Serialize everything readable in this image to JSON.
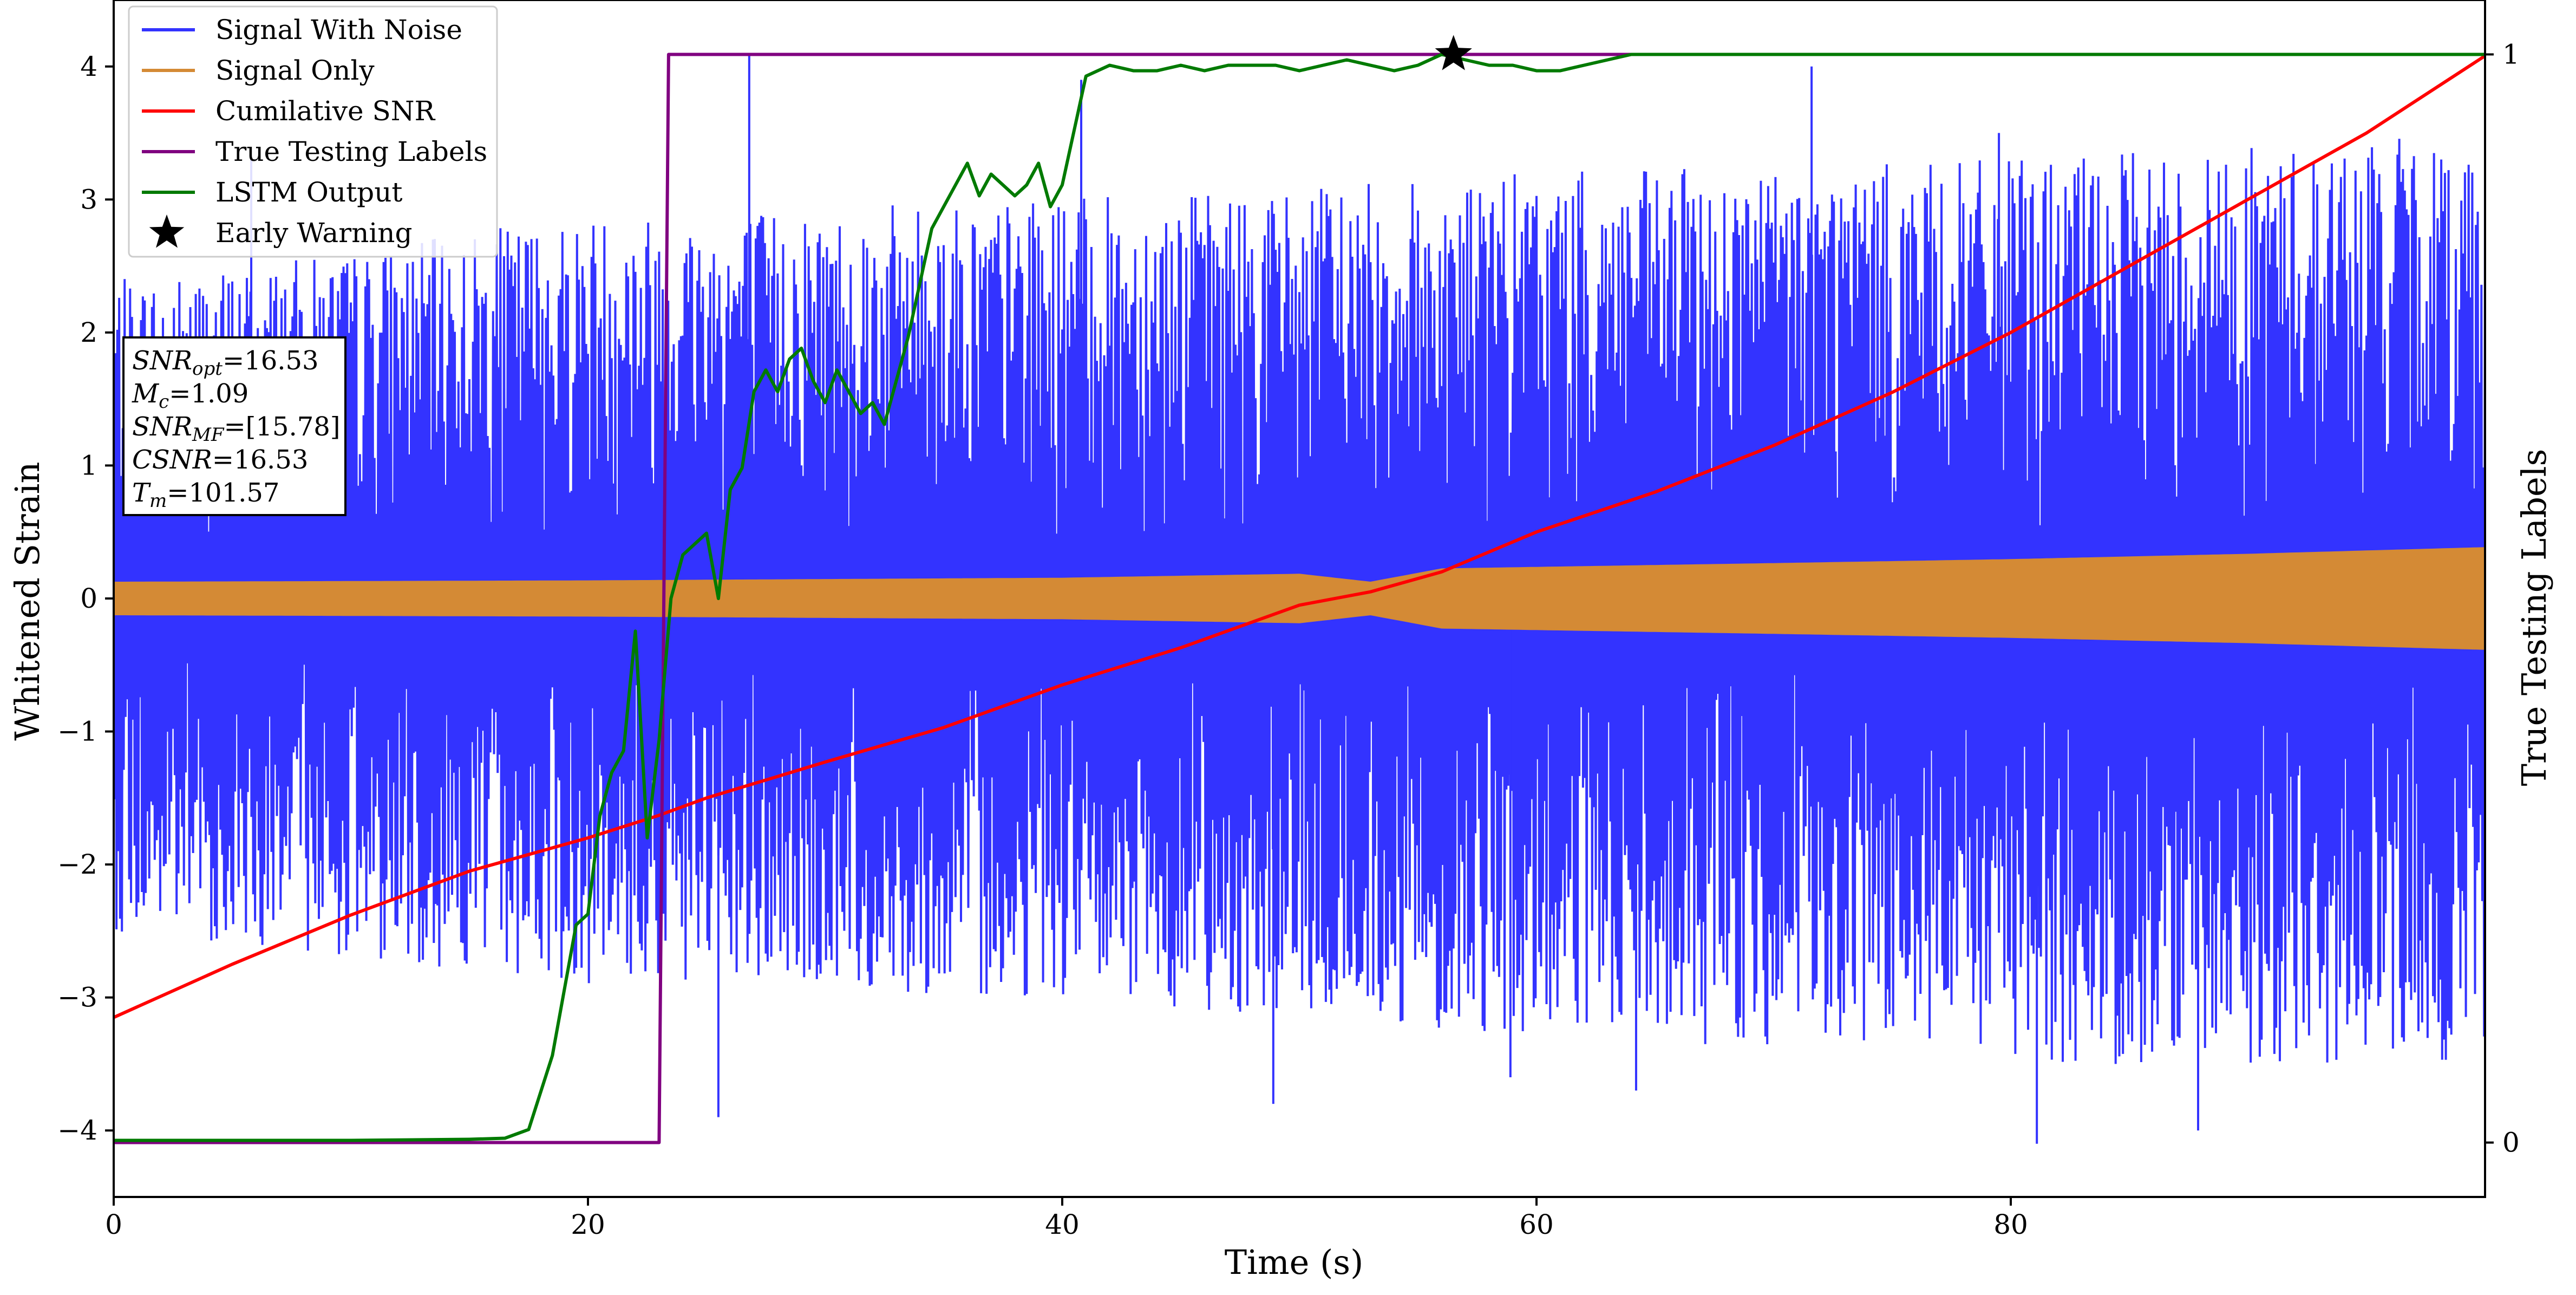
{
  "chart_data": {
    "type": "line",
    "xlabel": "Time (s)",
    "ylabel": "Whitened Strain",
    "ylabel_right": "True Testing Labels",
    "xlim": [
      0,
      100
    ],
    "ylim": [
      -4.5,
      4.5
    ],
    "ylim_right": [
      -0.05,
      1.05
    ],
    "x_ticks": [
      0,
      20,
      40,
      60,
      80
    ],
    "y_ticks": [
      -4,
      -3,
      -2,
      -1,
      0,
      1,
      2,
      3,
      4
    ],
    "y_ticks_right": [
      0,
      1
    ],
    "grid": false,
    "legend_position": "top-left",
    "series": [
      {
        "name": "Signal With Noise",
        "color": "#3333ff",
        "axis": "left",
        "kind": "dense-oscillation",
        "envelope_positive": [
          [
            0,
            2.4
          ],
          [
            10,
            2.6
          ],
          [
            20,
            2.9
          ],
          [
            40,
            3.0
          ],
          [
            60,
            3.2
          ],
          [
            80,
            3.3
          ],
          [
            100,
            3.5
          ]
        ],
        "envelope_negative": [
          [
            0,
            -2.5
          ],
          [
            20,
            -2.9
          ],
          [
            40,
            -3.0
          ],
          [
            60,
            -3.3
          ],
          [
            80,
            -3.5
          ],
          [
            100,
            -3.5
          ]
        ],
        "extreme_peaks": [
          [
            5.8,
            3.3
          ],
          [
            26.8,
            4.1
          ],
          [
            40.8,
            3.9
          ],
          [
            71.6,
            4.0
          ],
          [
            79.5,
            3.5
          ],
          [
            25.5,
            -3.9
          ],
          [
            48.9,
            -3.8
          ],
          [
            58.9,
            -3.6
          ],
          [
            64.2,
            -3.7
          ],
          [
            81.1,
            -4.1
          ],
          [
            87.9,
            -4.0
          ],
          [
            96.5,
            -3.3
          ]
        ]
      },
      {
        "name": "Signal Only",
        "color": "#d48a35",
        "axis": "left",
        "kind": "amplitude-band",
        "amplitude": [
          [
            0,
            0.12
          ],
          [
            20,
            0.13
          ],
          [
            40,
            0.15
          ],
          [
            50,
            0.18
          ],
          [
            53,
            0.12
          ],
          [
            56,
            0.22
          ],
          [
            70,
            0.26
          ],
          [
            80,
            0.29
          ],
          [
            90,
            0.33
          ],
          [
            100,
            0.38
          ]
        ]
      },
      {
        "name": "Cumilative SNR",
        "color": "#ff0000",
        "axis": "left",
        "x": [
          0,
          5,
          10,
          15,
          20,
          23,
          25,
          30,
          35,
          40,
          45,
          50,
          53,
          56,
          60,
          65,
          70,
          75,
          80,
          85,
          90,
          95,
          100
        ],
        "y": [
          -3.15,
          -2.75,
          -2.38,
          -2.05,
          -1.8,
          -1.63,
          -1.5,
          -1.23,
          -0.97,
          -0.65,
          -0.37,
          -0.05,
          0.05,
          0.2,
          0.5,
          0.8,
          1.15,
          1.55,
          2.0,
          2.5,
          3.0,
          3.5,
          4.08
        ]
      },
      {
        "name": "True Testing Labels",
        "color": "#800080",
        "axis": "right",
        "x": [
          0,
          23.0,
          23.4,
          100
        ],
        "y": [
          0,
          0,
          1,
          1
        ]
      },
      {
        "name": "LSTM Output",
        "color": "#007a00",
        "axis": "right",
        "x": [
          0,
          10,
          15,
          16.5,
          17.5,
          18.5,
          19.5,
          20.0,
          20.5,
          21.0,
          21.5,
          22.0,
          22.5,
          23.0,
          23.5,
          24.0,
          24.5,
          25.0,
          25.5,
          26.0,
          26.5,
          27.0,
          27.5,
          28.0,
          28.5,
          29.0,
          29.5,
          30.0,
          30.5,
          31.0,
          31.5,
          32.0,
          32.5,
          33.0,
          33.5,
          34.0,
          34.5,
          35.0,
          35.5,
          36.0,
          36.5,
          37.0,
          37.5,
          38.0,
          38.5,
          39.0,
          39.5,
          40.0,
          40.5,
          41.0,
          42.0,
          43.0,
          44.0,
          45.0,
          46.0,
          47.0,
          48.0,
          49.0,
          50.0,
          51.0,
          52.0,
          53.0,
          54.0,
          55.0,
          56.0,
          57.0,
          58.0,
          59.0,
          60.0,
          61.0,
          62.0,
          63.0,
          64.0,
          65.0,
          66.0,
          67.0,
          68.0,
          70.0,
          80.0,
          90.0,
          100.0
        ],
        "y": [
          0.002,
          0.002,
          0.003,
          0.004,
          0.012,
          0.08,
          0.2,
          0.21,
          0.3,
          0.34,
          0.36,
          0.47,
          0.28,
          0.37,
          0.5,
          0.54,
          0.55,
          0.56,
          0.5,
          0.6,
          0.62,
          0.69,
          0.71,
          0.69,
          0.72,
          0.73,
          0.7,
          0.68,
          0.71,
          0.69,
          0.67,
          0.68,
          0.66,
          0.7,
          0.74,
          0.79,
          0.84,
          0.86,
          0.88,
          0.9,
          0.87,
          0.89,
          0.88,
          0.87,
          0.88,
          0.9,
          0.86,
          0.88,
          0.93,
          0.98,
          0.99,
          0.985,
          0.985,
          0.99,
          0.985,
          0.99,
          0.99,
          0.99,
          0.985,
          0.99,
          0.995,
          0.99,
          0.985,
          0.99,
          1.0,
          0.995,
          0.99,
          0.99,
          0.985,
          0.985,
          0.99,
          0.995,
          1.0,
          1.0,
          1.0,
          1.0,
          1.0,
          1.0,
          1.0,
          1.0,
          1.0
        ]
      },
      {
        "name": "Early Warning",
        "color": "#000000",
        "axis": "right",
        "marker": "star",
        "x": [
          56.5
        ],
        "y": [
          1.0
        ]
      }
    ],
    "annotation_box": {
      "lines": [
        {
          "var": "SNR",
          "sub": "opt",
          "value": "=16.53"
        },
        {
          "var": "M",
          "sub": "c",
          "value": "=1.09"
        },
        {
          "var": "SNR",
          "sub": "MF",
          "value": "=[15.78]"
        },
        {
          "var": "CSNR",
          "sub": "",
          "value": "=16.53"
        },
        {
          "var": "T",
          "sub": "m",
          "value": "=101.57"
        }
      ]
    }
  }
}
